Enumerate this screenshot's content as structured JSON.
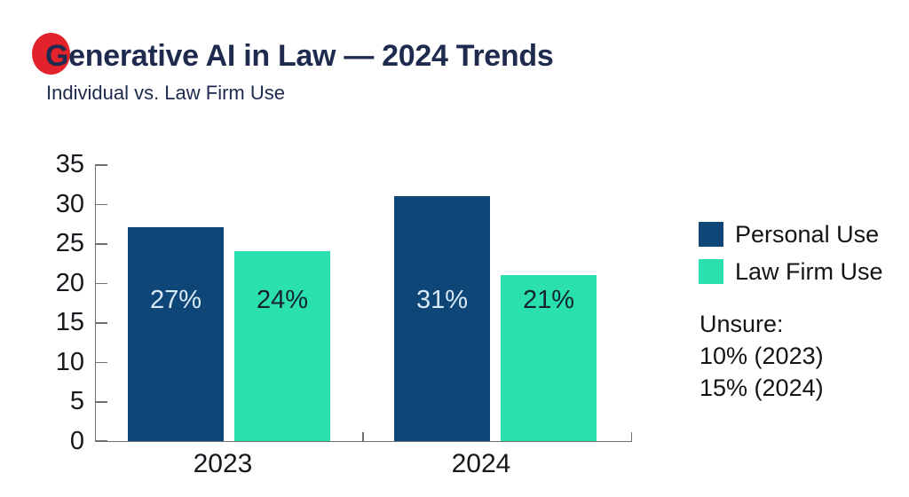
{
  "header": {
    "title": "Generative AI in Law — 2024 Trends",
    "subtitle": "Individual vs. Law Firm Use",
    "title_color": "#1e2a4e",
    "accent_dot_color": "#e3222b"
  },
  "chart_data": {
    "type": "bar",
    "title": "Generative AI in Law — 2024 Trends",
    "subtitle": "Individual vs. Law Firm Use",
    "categories": [
      "2023",
      "2024"
    ],
    "series": [
      {
        "name": "Personal Use",
        "values": [
          27,
          31
        ],
        "value_labels": [
          "27%",
          "31%"
        ],
        "color": "#0e4678",
        "value_label_color": "#d8e9f5"
      },
      {
        "name": "Law Firm Use",
        "values": [
          24,
          21
        ],
        "value_labels": [
          "24%",
          "21%"
        ],
        "color": "#29e0ae",
        "value_label_color": "#16242d"
      }
    ],
    "xlabel": "",
    "ylabel": "",
    "ylim": [
      0,
      35
    ],
    "y_ticks": [
      0,
      5,
      10,
      15,
      20,
      25,
      30,
      35
    ],
    "grid": false,
    "legend_position": "right",
    "axis_color": "#707070"
  },
  "legend_note": {
    "lines": [
      "Unsure:",
      "10% (2023)",
      "15% (2024)"
    ]
  }
}
